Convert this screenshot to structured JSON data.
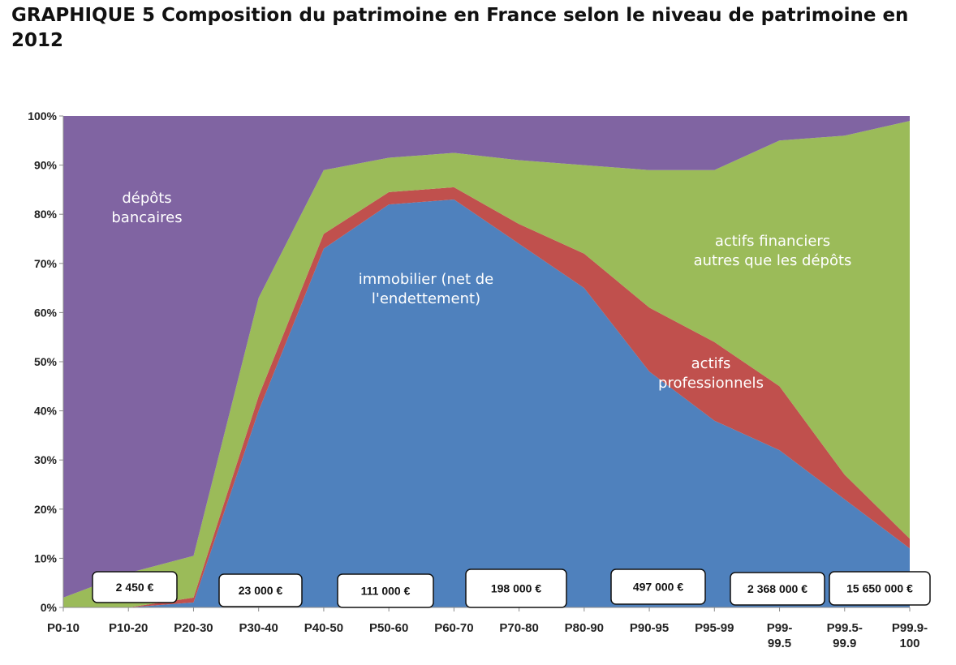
{
  "title": "GRAPHIQUE 5  Composition du patrimoine en France selon le niveau de patrimoine en 2012",
  "chart_data": {
    "type": "area",
    "stacked": true,
    "categories": [
      "P0-10",
      "P10-20",
      "P20-30",
      "P30-40",
      "P40-50",
      "P50-60",
      "P60-70",
      "P70-80",
      "P80-90",
      "P90-95",
      "P95-99",
      "P99-99.5",
      "P99.5-99.9",
      "P99.9-100"
    ],
    "category_lines": [
      [
        "P0-10"
      ],
      [
        "P10-20"
      ],
      [
        "P20-30"
      ],
      [
        "P30-40"
      ],
      [
        "P40-50"
      ],
      [
        "P50-60"
      ],
      [
        "P60-70"
      ],
      [
        "P70-80"
      ],
      [
        "P80-90"
      ],
      [
        "P90-95"
      ],
      [
        "P95-99"
      ],
      [
        "P99-",
        "99.5"
      ],
      [
        "P99.5-",
        "99.9"
      ],
      [
        "P99.9-",
        "100"
      ]
    ],
    "yticks": [
      "0%",
      "10%",
      "20%",
      "30%",
      "40%",
      "50%",
      "60%",
      "70%",
      "80%",
      "90%",
      "100%"
    ],
    "ylim": [
      0,
      100
    ],
    "series": [
      {
        "key": "immobilier",
        "color": "#4f81bd",
        "values": [
          0,
          0,
          1,
          40,
          73,
          82,
          83,
          74,
          65,
          48,
          38,
          32,
          22,
          12
        ]
      },
      {
        "key": "professionnels",
        "color": "#c0504d",
        "values": [
          0,
          0,
          1,
          3,
          3,
          2.5,
          2.5,
          4,
          7,
          13,
          16,
          13,
          5,
          2
        ]
      },
      {
        "key": "financiers",
        "color": "#9bbb59",
        "values": [
          2,
          7,
          8.5,
          20,
          13,
          7,
          7,
          13,
          18,
          28,
          35,
          50,
          69,
          85
        ]
      },
      {
        "key": "depots",
        "color": "#8064a2",
        "values": [
          98,
          93,
          89.5,
          37,
          11,
          8.5,
          7.5,
          9,
          10,
          11,
          11,
          5,
          4,
          1
        ]
      }
    ],
    "area_labels": {
      "depots": [
        "dépôts",
        "bancaires"
      ],
      "immobilier": [
        "immobilier (net de",
        "l'endettement)"
      ],
      "financiers": [
        "actifs financiers",
        "autres que les dépôts"
      ],
      "professionnels": [
        "actifs",
        "professionnels"
      ]
    },
    "value_boxes": [
      {
        "category": "P10-20",
        "text": "2 450 €"
      },
      {
        "category": "P30-40",
        "text": "23 000 €"
      },
      {
        "category": "P50-60",
        "text": "111 000 €"
      },
      {
        "category": "P70-80",
        "text": "198 000 €"
      },
      {
        "category": "P90-95",
        "text": "497 000 €"
      },
      {
        "category": "P99-99.5",
        "text": "2 368 000 €"
      },
      {
        "category": "P99.9-100",
        "text": "15 650 000 €"
      }
    ]
  }
}
